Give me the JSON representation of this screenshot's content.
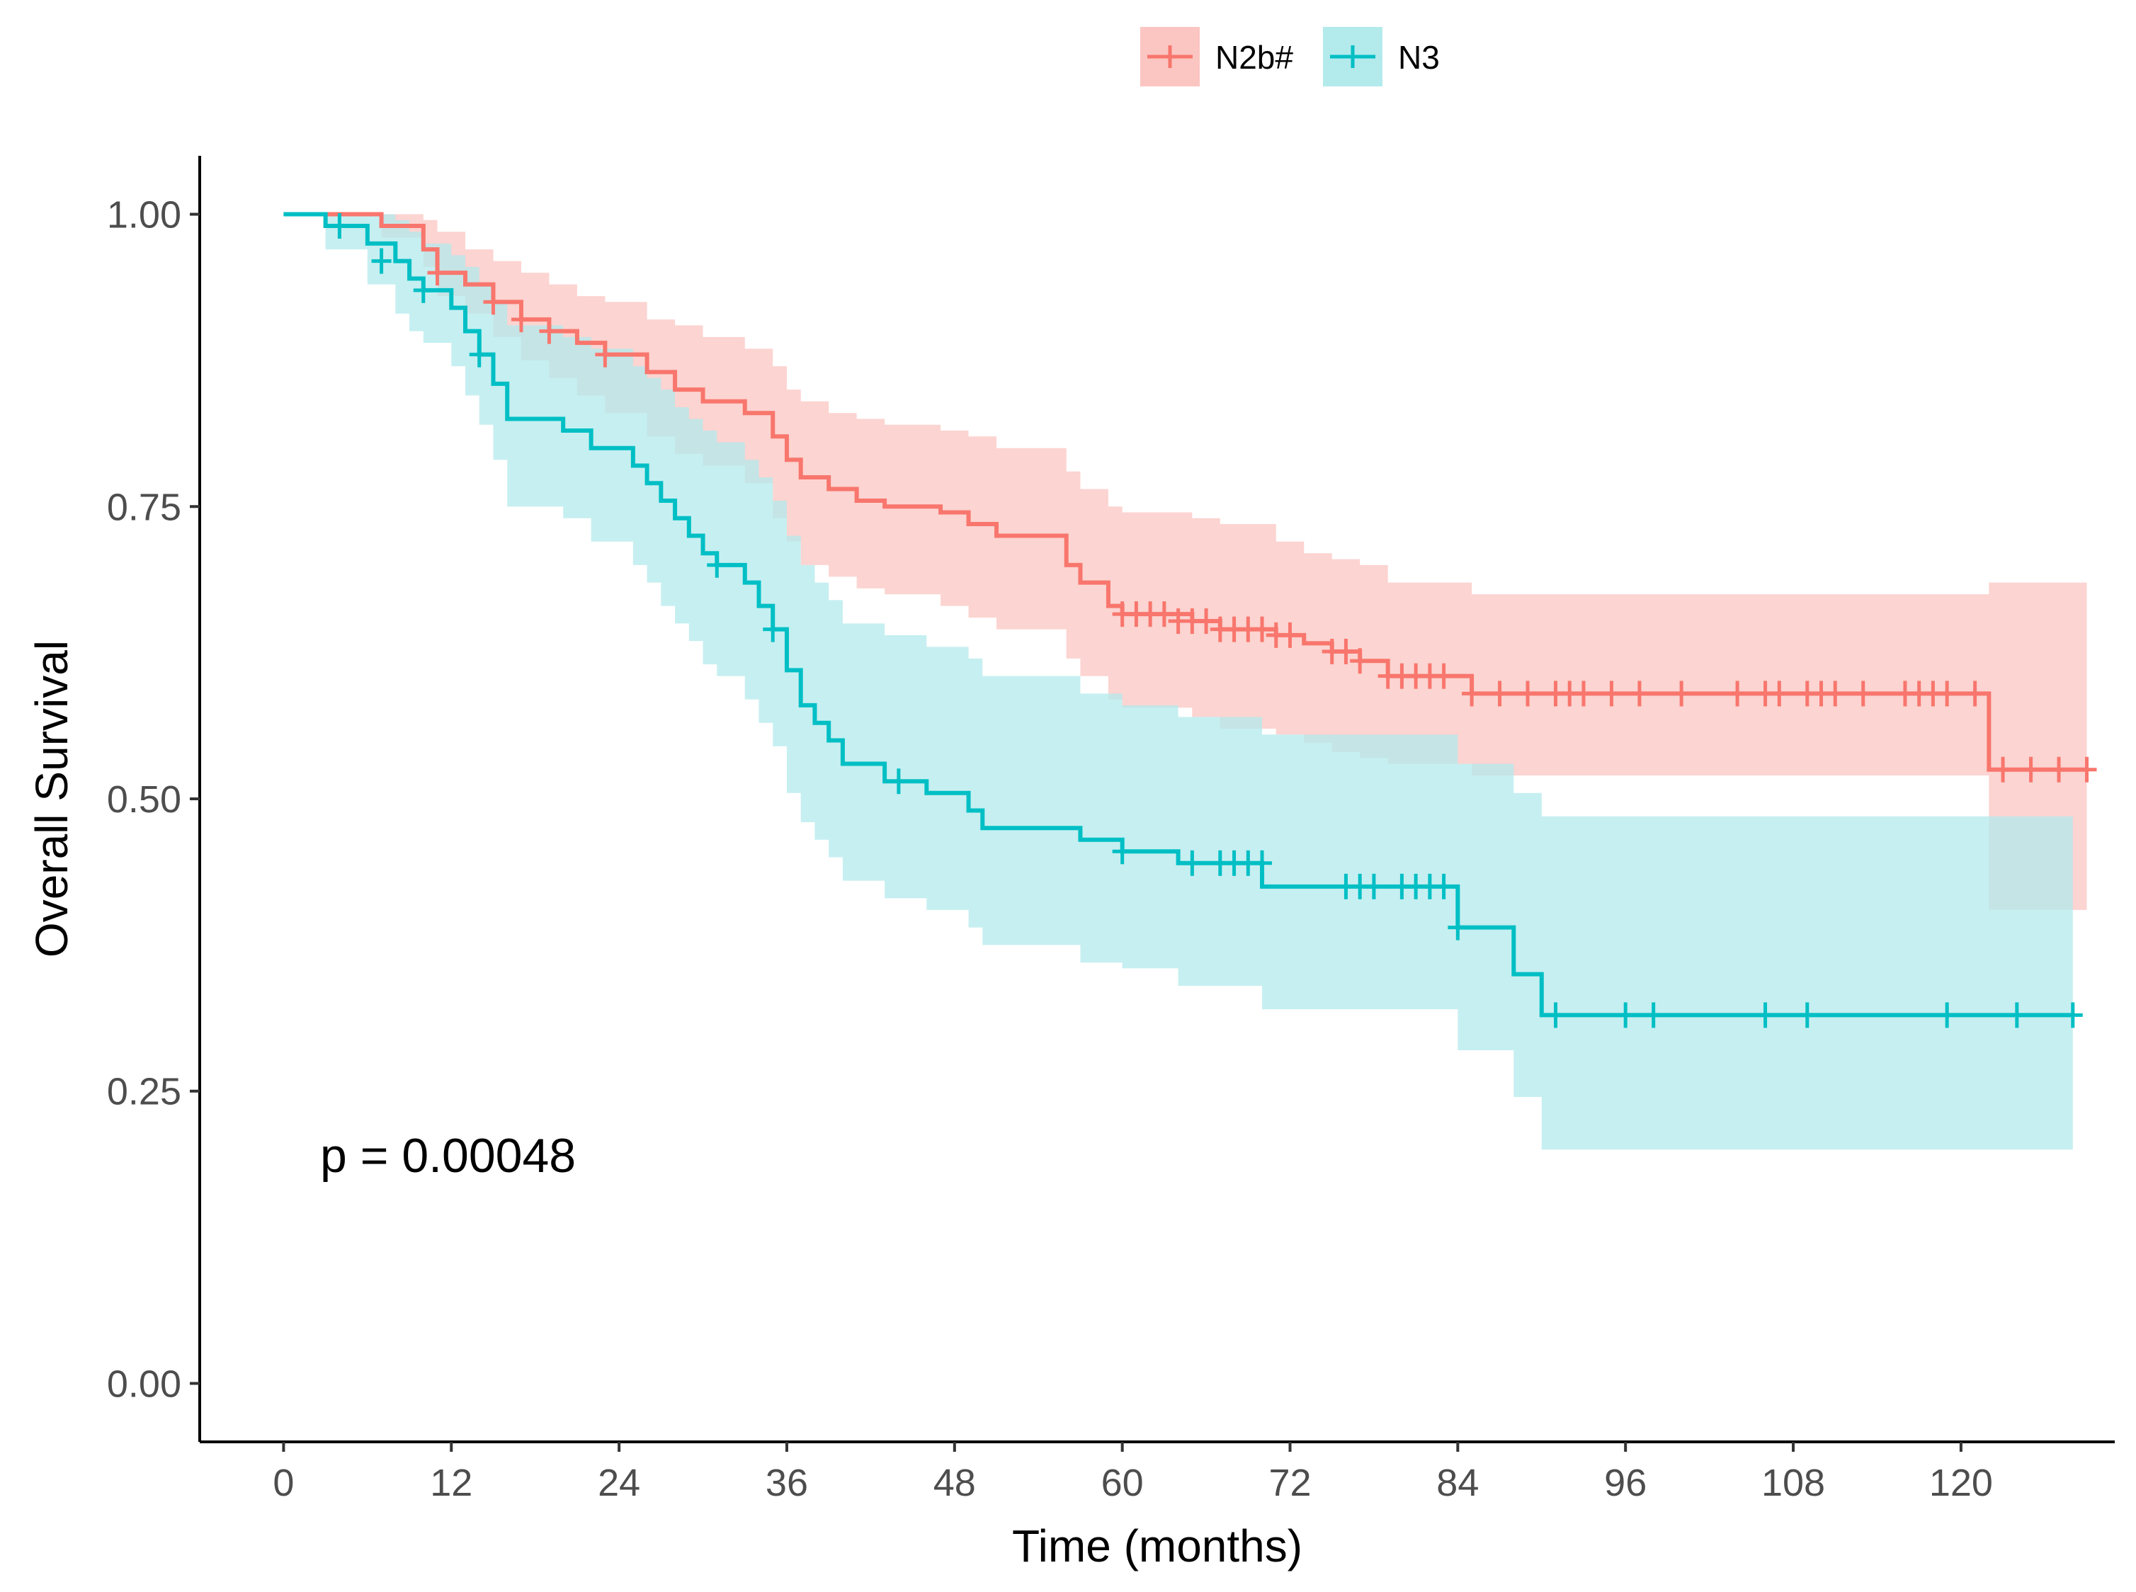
{
  "chart_data": {
    "type": "line",
    "subtype": "kaplan-meier",
    "xlabel": "Time (months)",
    "ylabel": "Overall Survival",
    "xlim": [
      -6,
      131
    ],
    "ylim": [
      -0.05,
      1.05
    ],
    "x_ticks": [
      0,
      12,
      24,
      36,
      48,
      60,
      72,
      84,
      96,
      108,
      120
    ],
    "x_tick_labels": [
      "0",
      "12",
      "24",
      "36",
      "48",
      "60",
      "72",
      "84",
      "96",
      "108",
      "120"
    ],
    "y_ticks": [
      0,
      0.25,
      0.5,
      0.75,
      1
    ],
    "y_tick_labels": [
      "0.00",
      "0.25",
      "0.50",
      "0.75",
      "1.00"
    ],
    "grid": false,
    "legend_position": "top",
    "annotation": "p = 0.00048",
    "series": [
      {
        "name": "N2b#",
        "color": "#F8766D",
        "band_color": "#FBC5C2",
        "steps": [
          [
            0,
            1.0
          ],
          [
            7,
            0.99
          ],
          [
            10,
            0.97
          ],
          [
            11,
            0.95
          ],
          [
            13,
            0.94
          ],
          [
            15,
            0.925
          ],
          [
            17,
            0.91
          ],
          [
            19,
            0.9
          ],
          [
            21,
            0.89
          ],
          [
            23,
            0.88
          ],
          [
            26,
            0.865
          ],
          [
            28,
            0.85
          ],
          [
            30,
            0.84
          ],
          [
            33,
            0.83
          ],
          [
            35,
            0.81
          ],
          [
            36,
            0.79
          ],
          [
            37,
            0.775
          ],
          [
            39,
            0.765
          ],
          [
            41,
            0.755
          ],
          [
            43,
            0.75
          ],
          [
            47,
            0.745
          ],
          [
            49,
            0.735
          ],
          [
            51,
            0.725
          ],
          [
            56,
            0.7
          ],
          [
            57,
            0.685
          ],
          [
            59,
            0.665
          ],
          [
            60,
            0.658
          ],
          [
            65,
            0.652
          ],
          [
            67,
            0.645
          ],
          [
            71,
            0.64
          ],
          [
            73,
            0.633
          ],
          [
            75,
            0.626
          ],
          [
            77,
            0.618
          ],
          [
            79,
            0.605
          ],
          [
            85,
            0.59
          ],
          [
            122,
            0.525
          ]
        ],
        "end": 129,
        "lower": [
          [
            0,
            1.0
          ],
          [
            7,
            0.98
          ],
          [
            10,
            0.955
          ],
          [
            11,
            0.93
          ],
          [
            13,
            0.915
          ],
          [
            15,
            0.895
          ],
          [
            17,
            0.875
          ],
          [
            19,
            0.86
          ],
          [
            21,
            0.845
          ],
          [
            23,
            0.83
          ],
          [
            26,
            0.81
          ],
          [
            28,
            0.795
          ],
          [
            30,
            0.785
          ],
          [
            33,
            0.77
          ],
          [
            35,
            0.74
          ],
          [
            36,
            0.72
          ],
          [
            37,
            0.7
          ],
          [
            39,
            0.69
          ],
          [
            41,
            0.68
          ],
          [
            43,
            0.675
          ],
          [
            47,
            0.665
          ],
          [
            49,
            0.655
          ],
          [
            51,
            0.645
          ],
          [
            56,
            0.62
          ],
          [
            57,
            0.605
          ],
          [
            59,
            0.585
          ],
          [
            60,
            0.578
          ],
          [
            65,
            0.57
          ],
          [
            67,
            0.56
          ],
          [
            71,
            0.555
          ],
          [
            73,
            0.548
          ],
          [
            75,
            0.54
          ],
          [
            77,
            0.535
          ],
          [
            79,
            0.53
          ],
          [
            85,
            0.52
          ],
          [
            122,
            0.405
          ]
        ],
        "upper": [
          [
            0,
            1.0
          ],
          [
            7,
            1.0
          ],
          [
            10,
            0.995
          ],
          [
            11,
            0.985
          ],
          [
            13,
            0.97
          ],
          [
            15,
            0.96
          ],
          [
            17,
            0.95
          ],
          [
            19,
            0.94
          ],
          [
            21,
            0.93
          ],
          [
            23,
            0.925
          ],
          [
            26,
            0.91
          ],
          [
            28,
            0.905
          ],
          [
            30,
            0.895
          ],
          [
            33,
            0.885
          ],
          [
            35,
            0.87
          ],
          [
            36,
            0.85
          ],
          [
            37,
            0.84
          ],
          [
            39,
            0.83
          ],
          [
            41,
            0.825
          ],
          [
            43,
            0.82
          ],
          [
            47,
            0.815
          ],
          [
            49,
            0.81
          ],
          [
            51,
            0.8
          ],
          [
            56,
            0.78
          ],
          [
            57,
            0.765
          ],
          [
            59,
            0.75
          ],
          [
            60,
            0.745
          ],
          [
            65,
            0.74
          ],
          [
            67,
            0.735
          ],
          [
            71,
            0.72
          ],
          [
            73,
            0.71
          ],
          [
            75,
            0.705
          ],
          [
            77,
            0.7
          ],
          [
            79,
            0.685
          ],
          [
            85,
            0.675
          ],
          [
            122,
            0.685
          ]
        ],
        "censors": [
          [
            11,
            0.95
          ],
          [
            15,
            0.925
          ],
          [
            17,
            0.91
          ],
          [
            19,
            0.9
          ],
          [
            23,
            0.88
          ],
          [
            60,
            0.658
          ],
          [
            61,
            0.658
          ],
          [
            62,
            0.658
          ],
          [
            63,
            0.658
          ],
          [
            64,
            0.652
          ],
          [
            65,
            0.652
          ],
          [
            66,
            0.652
          ],
          [
            67,
            0.645
          ],
          [
            68,
            0.645
          ],
          [
            69,
            0.645
          ],
          [
            70,
            0.645
          ],
          [
            71,
            0.64
          ],
          [
            72,
            0.64
          ],
          [
            75,
            0.626
          ],
          [
            76,
            0.626
          ],
          [
            77,
            0.618
          ],
          [
            79,
            0.605
          ],
          [
            80,
            0.605
          ],
          [
            81,
            0.605
          ],
          [
            82,
            0.605
          ],
          [
            83,
            0.605
          ],
          [
            85,
            0.59
          ],
          [
            87,
            0.59
          ],
          [
            89,
            0.59
          ],
          [
            91,
            0.59
          ],
          [
            92,
            0.59
          ],
          [
            93,
            0.59
          ],
          [
            95,
            0.59
          ],
          [
            97,
            0.59
          ],
          [
            100,
            0.59
          ],
          [
            104,
            0.59
          ],
          [
            106,
            0.59
          ],
          [
            107,
            0.59
          ],
          [
            109,
            0.59
          ],
          [
            110,
            0.59
          ],
          [
            111,
            0.59
          ],
          [
            113,
            0.59
          ],
          [
            116,
            0.59
          ],
          [
            117,
            0.59
          ],
          [
            118,
            0.59
          ],
          [
            119,
            0.59
          ],
          [
            121,
            0.59
          ],
          [
            123,
            0.525
          ],
          [
            125,
            0.525
          ],
          [
            127,
            0.525
          ],
          [
            129,
            0.525
          ]
        ]
      },
      {
        "name": "N3",
        "color": "#00BFC4",
        "band_color": "#B3EAEC",
        "steps": [
          [
            0,
            1.0
          ],
          [
            3,
            0.99
          ],
          [
            6,
            0.975
          ],
          [
            8,
            0.96
          ],
          [
            9,
            0.945
          ],
          [
            10,
            0.935
          ],
          [
            12,
            0.92
          ],
          [
            13,
            0.9
          ],
          [
            14,
            0.88
          ],
          [
            15,
            0.855
          ],
          [
            16,
            0.825
          ],
          [
            20,
            0.815
          ],
          [
            22,
            0.8
          ],
          [
            25,
            0.785
          ],
          [
            26,
            0.77
          ],
          [
            27,
            0.755
          ],
          [
            28,
            0.74
          ],
          [
            29,
            0.725
          ],
          [
            30,
            0.71
          ],
          [
            31,
            0.7
          ],
          [
            33,
            0.685
          ],
          [
            34,
            0.665
          ],
          [
            35,
            0.645
          ],
          [
            36,
            0.61
          ],
          [
            37,
            0.58
          ],
          [
            38,
            0.565
          ],
          [
            39,
            0.55
          ],
          [
            40,
            0.53
          ],
          [
            43,
            0.515
          ],
          [
            46,
            0.505
          ],
          [
            49,
            0.49
          ],
          [
            50,
            0.475
          ],
          [
            57,
            0.465
          ],
          [
            60,
            0.455
          ],
          [
            64,
            0.445
          ],
          [
            70,
            0.425
          ],
          [
            84,
            0.39
          ],
          [
            88,
            0.35
          ],
          [
            90,
            0.315
          ]
        ],
        "end": 128,
        "lower": [
          [
            0,
            1.0
          ],
          [
            3,
            0.97
          ],
          [
            6,
            0.94
          ],
          [
            8,
            0.915
          ],
          [
            9,
            0.9
          ],
          [
            10,
            0.89
          ],
          [
            12,
            0.87
          ],
          [
            13,
            0.845
          ],
          [
            14,
            0.82
          ],
          [
            15,
            0.79
          ],
          [
            16,
            0.75
          ],
          [
            20,
            0.74
          ],
          [
            22,
            0.72
          ],
          [
            25,
            0.7
          ],
          [
            26,
            0.685
          ],
          [
            27,
            0.665
          ],
          [
            28,
            0.65
          ],
          [
            29,
            0.635
          ],
          [
            30,
            0.615
          ],
          [
            31,
            0.605
          ],
          [
            33,
            0.585
          ],
          [
            34,
            0.565
          ],
          [
            35,
            0.545
          ],
          [
            36,
            0.505
          ],
          [
            37,
            0.48
          ],
          [
            38,
            0.465
          ],
          [
            39,
            0.45
          ],
          [
            40,
            0.43
          ],
          [
            43,
            0.415
          ],
          [
            46,
            0.405
          ],
          [
            49,
            0.39
          ],
          [
            50,
            0.375
          ],
          [
            57,
            0.36
          ],
          [
            60,
            0.355
          ],
          [
            64,
            0.34
          ],
          [
            70,
            0.32
          ],
          [
            84,
            0.285
          ],
          [
            88,
            0.245
          ],
          [
            90,
            0.2
          ]
        ],
        "upper": [
          [
            0,
            1.0
          ],
          [
            3,
            1.0
          ],
          [
            6,
            1.0
          ],
          [
            8,
            0.995
          ],
          [
            9,
            0.985
          ],
          [
            10,
            0.975
          ],
          [
            12,
            0.965
          ],
          [
            13,
            0.955
          ],
          [
            14,
            0.94
          ],
          [
            15,
            0.925
          ],
          [
            16,
            0.905
          ],
          [
            20,
            0.895
          ],
          [
            22,
            0.885
          ],
          [
            25,
            0.87
          ],
          [
            26,
            0.86
          ],
          [
            27,
            0.85
          ],
          [
            28,
            0.835
          ],
          [
            29,
            0.825
          ],
          [
            30,
            0.815
          ],
          [
            31,
            0.805
          ],
          [
            33,
            0.79
          ],
          [
            34,
            0.775
          ],
          [
            35,
            0.755
          ],
          [
            36,
            0.725
          ],
          [
            37,
            0.7
          ],
          [
            38,
            0.685
          ],
          [
            39,
            0.67
          ],
          [
            40,
            0.65
          ],
          [
            43,
            0.64
          ],
          [
            46,
            0.63
          ],
          [
            49,
            0.62
          ],
          [
            50,
            0.605
          ],
          [
            57,
            0.59
          ],
          [
            60,
            0.58
          ],
          [
            64,
            0.57
          ],
          [
            70,
            0.555
          ],
          [
            84,
            0.53
          ],
          [
            88,
            0.505
          ],
          [
            90,
            0.485
          ]
        ],
        "censors": [
          [
            4,
            0.99
          ],
          [
            7,
            0.96
          ],
          [
            10,
            0.935
          ],
          [
            14,
            0.88
          ],
          [
            31,
            0.7
          ],
          [
            35,
            0.645
          ],
          [
            44,
            0.515
          ],
          [
            60,
            0.455
          ],
          [
            65,
            0.445
          ],
          [
            67,
            0.445
          ],
          [
            68,
            0.445
          ],
          [
            69,
            0.445
          ],
          [
            70,
            0.445
          ],
          [
            76,
            0.425
          ],
          [
            77,
            0.425
          ],
          [
            78,
            0.425
          ],
          [
            80,
            0.425
          ],
          [
            81,
            0.425
          ],
          [
            82,
            0.425
          ],
          [
            83,
            0.425
          ],
          [
            84,
            0.39
          ],
          [
            91,
            0.315
          ],
          [
            96,
            0.315
          ],
          [
            98,
            0.315
          ],
          [
            106,
            0.315
          ],
          [
            109,
            0.315
          ],
          [
            119,
            0.315
          ],
          [
            124,
            0.315
          ],
          [
            128,
            0.315
          ]
        ]
      }
    ]
  }
}
